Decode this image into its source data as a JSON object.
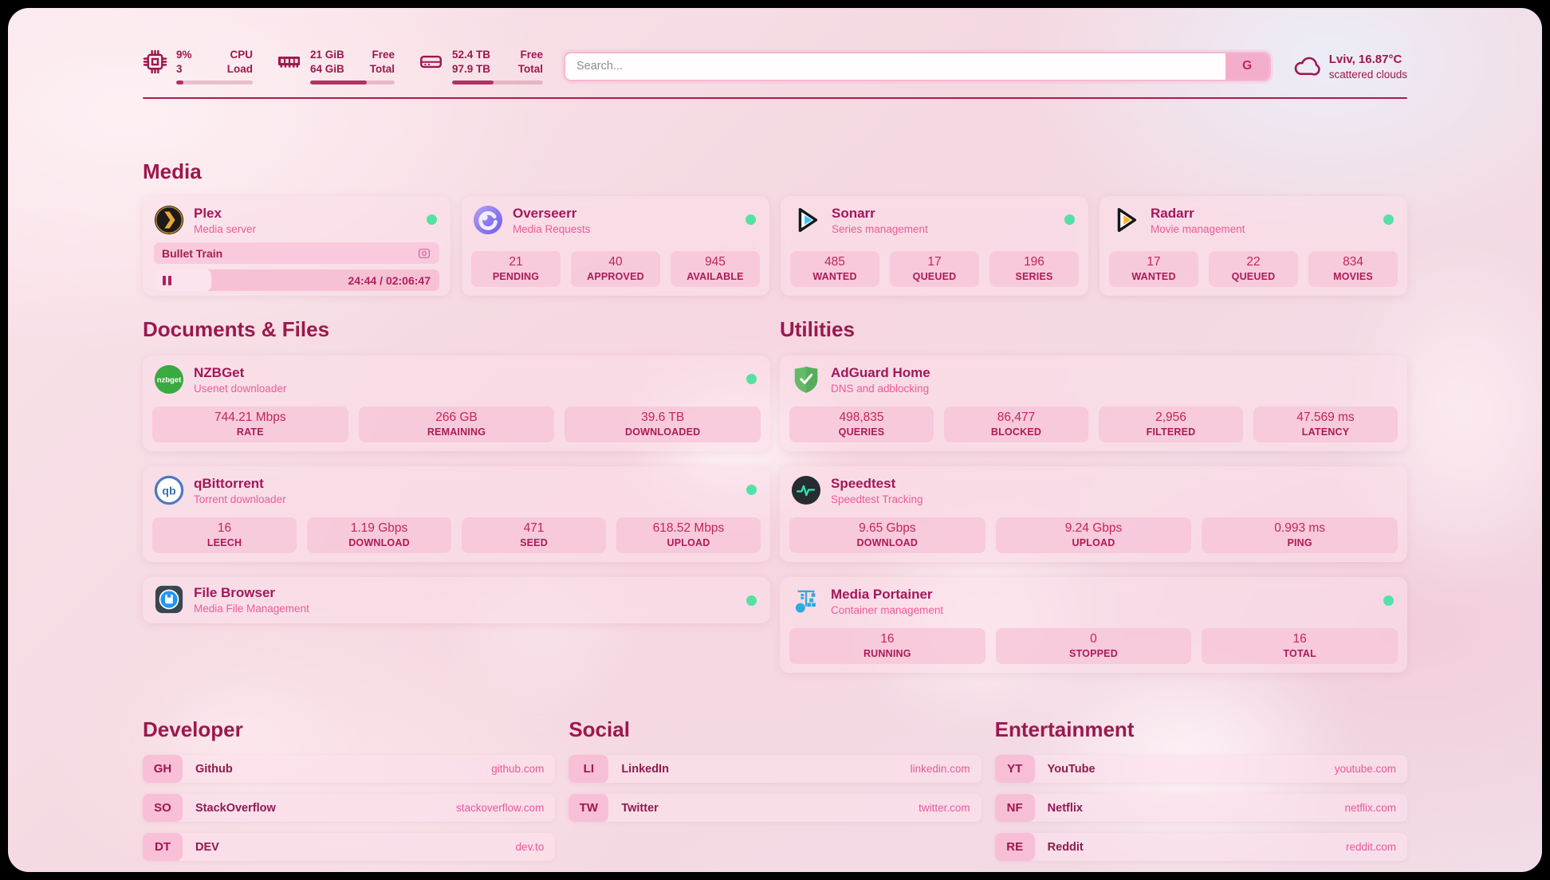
{
  "header": {
    "system": {
      "cpu": {
        "icon": "cpu-icon",
        "value": "9%",
        "sub": "3",
        "label_top": "CPU",
        "label_bottom": "Load",
        "percent": 9
      },
      "memory": {
        "icon": "memory-icon",
        "value": "21 GiB",
        "sub": "64 GiB",
        "label_top": "Free",
        "label_bottom": "Total",
        "percent": 67
      },
      "disk": {
        "icon": "disk-icon",
        "value": "52.4 TB",
        "sub": "97.9 TB",
        "label_top": "Free",
        "label_bottom": "Total",
        "percent": 46
      }
    },
    "search": {
      "placeholder": "Search...",
      "button_label": "G"
    },
    "weather": {
      "icon": "cloud-icon",
      "location_temp": "Lviv, 16.87°C",
      "condition": "scattered clouds"
    }
  },
  "media": {
    "title": "Media",
    "plex": {
      "icon": "plex-icon",
      "name": "Plex",
      "description": "Media server",
      "online": true,
      "now_playing": {
        "title": "Bullet Train",
        "time": "24:44 / 02:06:47",
        "progress_percent": 20
      }
    },
    "overseerr": {
      "icon": "overseerr-icon",
      "name": "Overseerr",
      "description": "Media Requests",
      "online": true,
      "stats": [
        {
          "value": "21",
          "label": "PENDING"
        },
        {
          "value": "40",
          "label": "APPROVED"
        },
        {
          "value": "945",
          "label": "AVAILABLE"
        }
      ]
    },
    "sonarr": {
      "icon": "sonarr-icon",
      "name": "Sonarr",
      "description": "Series management",
      "online": true,
      "stats": [
        {
          "value": "485",
          "label": "WANTED"
        },
        {
          "value": "17",
          "label": "QUEUED"
        },
        {
          "value": "196",
          "label": "SERIES"
        }
      ]
    },
    "radarr": {
      "icon": "radarr-icon",
      "name": "Radarr",
      "description": "Movie management",
      "online": true,
      "stats": [
        {
          "value": "17",
          "label": "WANTED"
        },
        {
          "value": "22",
          "label": "QUEUED"
        },
        {
          "value": "834",
          "label": "MOVIES"
        }
      ]
    }
  },
  "documents": {
    "title": "Documents & Files",
    "nzbget": {
      "icon": "nzbget-icon",
      "name": "NZBGet",
      "description": "Usenet downloader",
      "online": true,
      "stats": [
        {
          "value": "744.21 Mbps",
          "label": "RATE"
        },
        {
          "value": "266 GB",
          "label": "REMAINING"
        },
        {
          "value": "39.6 TB",
          "label": "DOWNLOADED"
        }
      ]
    },
    "qbittorrent": {
      "icon": "qbittorrent-icon",
      "name": "qBittorrent",
      "description": "Torrent downloader",
      "online": true,
      "stats": [
        {
          "value": "16",
          "label": "LEECH"
        },
        {
          "value": "1.19 Gbps",
          "label": "DOWNLOAD"
        },
        {
          "value": "471",
          "label": "SEED"
        },
        {
          "value": "618.52 Mbps",
          "label": "UPLOAD"
        }
      ]
    },
    "filebrowser": {
      "icon": "filebrowser-icon",
      "name": "File Browser",
      "description": "Media File Management",
      "online": true
    }
  },
  "utilities": {
    "title": "Utilities",
    "adguard": {
      "icon": "adguard-icon",
      "name": "AdGuard Home",
      "description": "DNS and adblocking",
      "online": false,
      "stats": [
        {
          "value": "498,835",
          "label": "QUERIES"
        },
        {
          "value": "86,477",
          "label": "BLOCKED"
        },
        {
          "value": "2,956",
          "label": "FILTERED"
        },
        {
          "value": "47.569 ms",
          "label": "LATENCY"
        }
      ]
    },
    "speedtest": {
      "icon": "speedtest-icon",
      "name": "Speedtest",
      "description": "Speedtest Tracking",
      "online": false,
      "stats": [
        {
          "value": "9.65 Gbps",
          "label": "DOWNLOAD"
        },
        {
          "value": "9.24 Gbps",
          "label": "UPLOAD"
        },
        {
          "value": "0.993 ms",
          "label": "PING"
        }
      ]
    },
    "portainer": {
      "icon": "portainer-icon",
      "name": "Media Portainer",
      "description": "Container management",
      "online": true,
      "stats": [
        {
          "value": "16",
          "label": "RUNNING"
        },
        {
          "value": "0",
          "label": "STOPPED"
        },
        {
          "value": "16",
          "label": "TOTAL"
        }
      ]
    }
  },
  "bookmarks": {
    "developer": {
      "title": "Developer",
      "links": [
        {
          "abbr": "GH",
          "name": "Github",
          "url": "github.com"
        },
        {
          "abbr": "SO",
          "name": "StackOverflow",
          "url": "stackoverflow.com"
        },
        {
          "abbr": "DT",
          "name": "DEV",
          "url": "dev.to"
        }
      ]
    },
    "social": {
      "title": "Social",
      "links": [
        {
          "abbr": "LI",
          "name": "LinkedIn",
          "url": "linkedin.com"
        },
        {
          "abbr": "TW",
          "name": "Twitter",
          "url": "twitter.com"
        }
      ]
    },
    "entertainment": {
      "title": "Entertainment",
      "links": [
        {
          "abbr": "YT",
          "name": "YouTube",
          "url": "youtube.com"
        },
        {
          "abbr": "NF",
          "name": "Netflix",
          "url": "netflix.com"
        },
        {
          "abbr": "RE",
          "name": "Reddit",
          "url": "reddit.com"
        }
      ]
    }
  },
  "colors": {
    "accent": "#9d174d",
    "pink": "#ee5a99",
    "status_online": "#55e0a6"
  }
}
